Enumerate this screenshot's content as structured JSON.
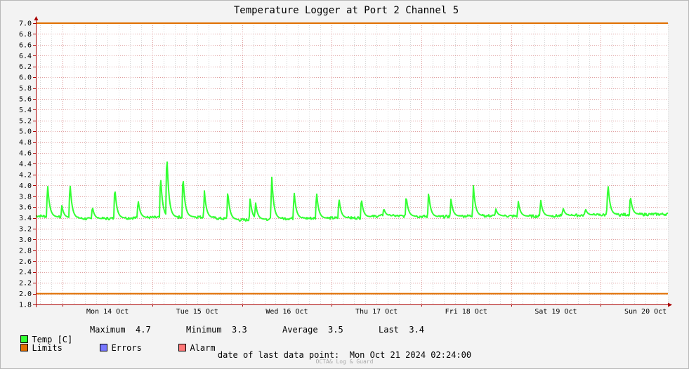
{
  "colors": {
    "background": "#f3f3f3",
    "plot_area": "#ffffff",
    "temp_line": "#33ff33",
    "limits_line": "#e06f00",
    "errors": "#7777ff",
    "alarm": "#ff7777",
    "grid_major": "#e0a0a0",
    "grid_minor": "#d8d8d8",
    "axis": "#aa0000"
  },
  "chart_data": {
    "type": "line",
    "title": "Temperature Logger at Port 2 Channel 5",
    "ylim": [
      1.8,
      7.0
    ],
    "y_ticks": [
      "1.8",
      "2.0",
      "2.2",
      "2.4",
      "2.6",
      "2.8",
      "3.0",
      "3.2",
      "3.4",
      "3.6",
      "3.8",
      "4.0",
      "4.2",
      "4.4",
      "4.6",
      "4.8",
      "5.0",
      "5.2",
      "5.4",
      "5.6",
      "5.8",
      "6.0",
      "6.2",
      "6.4",
      "6.6",
      "6.8",
      "7.0"
    ],
    "x_start_day": 13.7,
    "x_end_day": 20.75,
    "x_labels": [
      {
        "label": "Mon 14 Oct",
        "day": 14
      },
      {
        "label": "Tue 15 Oct",
        "day": 15
      },
      {
        "label": "Wed 16 Oct",
        "day": 16
      },
      {
        "label": "Thu 17 Oct",
        "day": 17
      },
      {
        "label": "Fri 18 Oct",
        "day": 18
      },
      {
        "label": "Sat 19 Oct",
        "day": 19
      },
      {
        "label": "Sun 20 Oct",
        "day": 20
      }
    ],
    "limits": [
      2.0,
      7.0
    ],
    "series": [
      {
        "name": "Temp [C]",
        "baseline": [
          [
            13.7,
            3.44
          ],
          [
            14.3,
            3.38
          ],
          [
            14.75,
            3.4
          ],
          [
            15.5,
            3.42
          ],
          [
            16.0,
            3.36
          ],
          [
            16.5,
            3.39
          ],
          [
            17.3,
            3.4
          ],
          [
            17.55,
            3.44
          ],
          [
            18.2,
            3.42
          ],
          [
            18.6,
            3.44
          ],
          [
            19.3,
            3.43
          ],
          [
            19.8,
            3.45
          ],
          [
            20.75,
            3.47
          ]
        ],
        "spikes": [
          [
            13.83,
            4.06
          ],
          [
            13.99,
            3.63
          ],
          [
            14.08,
            4.09
          ],
          [
            14.33,
            3.62
          ],
          [
            14.58,
            4.0
          ],
          [
            14.84,
            3.75
          ],
          [
            15.09,
            4.23
          ],
          [
            15.16,
            4.67
          ],
          [
            15.34,
            4.23
          ],
          [
            15.58,
            3.9
          ],
          [
            15.84,
            3.92
          ],
          [
            16.09,
            3.78
          ],
          [
            16.15,
            3.7
          ],
          [
            16.33,
            4.22
          ],
          [
            16.58,
            3.91
          ],
          [
            16.83,
            3.91
          ],
          [
            17.08,
            3.79
          ],
          [
            17.33,
            3.78
          ],
          [
            17.58,
            3.58
          ],
          [
            17.83,
            3.82
          ],
          [
            18.08,
            3.89
          ],
          [
            18.33,
            3.76
          ],
          [
            18.58,
            4.0
          ],
          [
            18.83,
            3.57
          ],
          [
            19.08,
            3.72
          ],
          [
            19.33,
            3.75
          ],
          [
            19.58,
            3.59
          ],
          [
            19.83,
            3.57
          ],
          [
            20.07,
            3.58
          ],
          [
            20.08,
            4.08
          ],
          [
            20.33,
            3.83
          ]
        ]
      }
    ]
  },
  "legend": {
    "temp_label": "Temp [C]",
    "max_label": "Maximum",
    "max_value": "4.7",
    "min_label": "Minimum",
    "min_value": "3.3",
    "avg_label": "Average",
    "avg_value": "3.5",
    "last_label": "Last",
    "last_value": "3.4",
    "limits_label": "Limits",
    "errors_label": "Errors",
    "alarm_label": "Alarm"
  },
  "footer": {
    "date_line": "date of last data point:  Mon Oct 21 2024 02:24:00",
    "credit": "OCTA& Log & Guard"
  }
}
